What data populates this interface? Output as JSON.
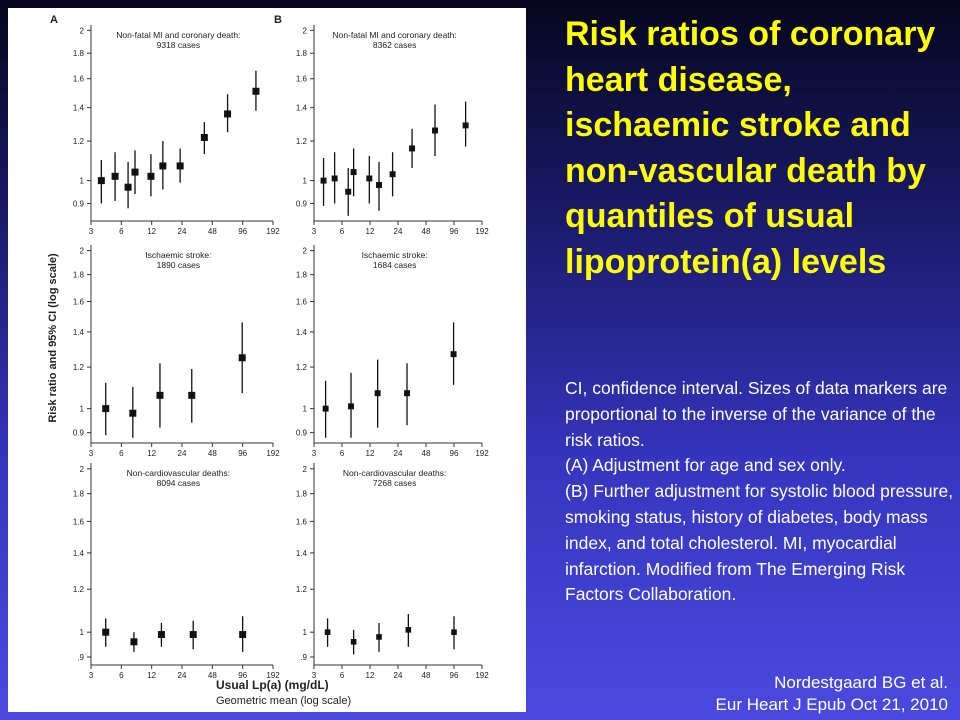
{
  "slide": {
    "title": "Risk ratios of coronary heart disease, ischaemic stroke and non-vascular death by quantiles of usual lipoprotein(a) levels",
    "caption_lines": [
      "CI, confidence interval. Sizes of data markers are proportional to the inverse of the variance of the risk ratios.",
      "(A) Adjustment for age and sex only.",
      "(B) Further adjustment for systolic blood pressure, smoking status, history of diabetes, body mass index, and total cholesterol. MI, myocardial infarction. Modified from The Emerging Risk Factors Collaboration."
    ],
    "citation_line1": "Nordestgaard BG et al.",
    "citation_line2": "Eur Heart J  Epub Oct 21, 2010",
    "title_color": "#ffff00",
    "text_color": "#ffffff"
  },
  "figure": {
    "ylabel": "Risk ratio and 95% CI (log scale)",
    "xlabel_bold": "Usual  Lp(a) (mg/dL)",
    "xlabel_sub": "Geometric mean (log scale)",
    "col_labels": [
      "A",
      "B"
    ]
  },
  "chart_data": [
    {
      "type": "scatter",
      "panel": "A",
      "row": 1,
      "title_line1": "Non-fatal MI and coronary death:",
      "title_line2": "9318 cases",
      "x_scale": "log",
      "y_scale": "log",
      "xlim": [
        3,
        192
      ],
      "x_ticks": [
        3,
        6,
        12,
        24,
        48,
        96,
        192
      ],
      "y_ticks": [
        0.9,
        1,
        1.2,
        1.4,
        1.6,
        1.8,
        2
      ],
      "y_tick_labels": [
        "0.9",
        "1",
        "1.2",
        "1.4",
        "1.6",
        "1.8",
        "2"
      ],
      "ylim": [
        0.83,
        2.05
      ],
      "points": [
        {
          "x": 3.8,
          "y": 1.0,
          "lo": 0.9,
          "hi": 1.1,
          "size": 1.0
        },
        {
          "x": 5.2,
          "y": 1.02,
          "lo": 0.91,
          "hi": 1.14,
          "size": 1.0
        },
        {
          "x": 7.0,
          "y": 0.97,
          "lo": 0.88,
          "hi": 1.09,
          "size": 1.0
        },
        {
          "x": 8.2,
          "y": 1.04,
          "lo": 0.94,
          "hi": 1.15,
          "size": 1.0
        },
        {
          "x": 11.8,
          "y": 1.02,
          "lo": 0.93,
          "hi": 1.13,
          "size": 1.0
        },
        {
          "x": 15.5,
          "y": 1.07,
          "lo": 0.96,
          "hi": 1.2,
          "size": 1.0
        },
        {
          "x": 23,
          "y": 1.07,
          "lo": 0.99,
          "hi": 1.16,
          "size": 1.0
        },
        {
          "x": 40,
          "y": 1.22,
          "lo": 1.13,
          "hi": 1.31,
          "size": 1.0
        },
        {
          "x": 68,
          "y": 1.36,
          "lo": 1.25,
          "hi": 1.49,
          "size": 1.0
        },
        {
          "x": 130,
          "y": 1.51,
          "lo": 1.38,
          "hi": 1.66,
          "size": 1.0
        }
      ]
    },
    {
      "type": "scatter",
      "panel": "B",
      "row": 1,
      "title_line1": "Non-fatal MI and coronary death:",
      "title_line2": "8362 cases",
      "x_scale": "log",
      "y_scale": "log",
      "xlim": [
        3,
        192
      ],
      "x_ticks": [
        3,
        6,
        12,
        24,
        48,
        96,
        192
      ],
      "y_ticks": [
        0.9,
        1,
        1.2,
        1.4,
        1.6,
        1.8,
        2
      ],
      "y_tick_labels": [
        "0.9",
        "1",
        "1.2",
        "1.4",
        "1.6",
        "1.8",
        "2"
      ],
      "ylim": [
        0.83,
        2.05
      ],
      "points": [
        {
          "x": 3.8,
          "y": 1.0,
          "lo": 0.89,
          "hi": 1.11,
          "size": 0.85
        },
        {
          "x": 5.0,
          "y": 1.01,
          "lo": 0.9,
          "hi": 1.14,
          "size": 0.85
        },
        {
          "x": 7.0,
          "y": 0.95,
          "lo": 0.85,
          "hi": 1.06,
          "size": 0.85
        },
        {
          "x": 8.0,
          "y": 1.04,
          "lo": 0.93,
          "hi": 1.16,
          "size": 0.85
        },
        {
          "x": 11.8,
          "y": 1.01,
          "lo": 0.9,
          "hi": 1.12,
          "size": 0.85
        },
        {
          "x": 15.0,
          "y": 0.98,
          "lo": 0.87,
          "hi": 1.09,
          "size": 0.85
        },
        {
          "x": 21,
          "y": 1.03,
          "lo": 0.93,
          "hi": 1.14,
          "size": 0.85
        },
        {
          "x": 34,
          "y": 1.16,
          "lo": 1.06,
          "hi": 1.27,
          "size": 0.85
        },
        {
          "x": 60,
          "y": 1.26,
          "lo": 1.12,
          "hi": 1.42,
          "size": 0.85
        },
        {
          "x": 128,
          "y": 1.29,
          "lo": 1.17,
          "hi": 1.44,
          "size": 0.85
        }
      ]
    },
    {
      "type": "scatter",
      "panel": "A",
      "row": 2,
      "title_line1": "Ischaemic stroke:",
      "title_line2": "1890 cases",
      "x_scale": "log",
      "y_scale": "log",
      "xlim": [
        3,
        192
      ],
      "x_ticks": [
        3,
        6,
        12,
        24,
        48,
        96,
        192
      ],
      "y_ticks": [
        0.9,
        1,
        1.2,
        1.4,
        1.6,
        1.8,
        2
      ],
      "y_tick_labels": [
        "0.9",
        "1",
        "1.2",
        "1.4",
        "1.6",
        "1.8",
        "2"
      ],
      "ylim": [
        0.86,
        2.05
      ],
      "points": [
        {
          "x": 4.2,
          "y": 1.0,
          "lo": 0.89,
          "hi": 1.12,
          "size": 1.0
        },
        {
          "x": 7.8,
          "y": 0.98,
          "lo": 0.88,
          "hi": 1.1,
          "size": 1.0
        },
        {
          "x": 14.5,
          "y": 1.06,
          "lo": 0.92,
          "hi": 1.22,
          "size": 1.0
        },
        {
          "x": 30,
          "y": 1.06,
          "lo": 0.94,
          "hi": 1.19,
          "size": 1.0
        },
        {
          "x": 95,
          "y": 1.25,
          "lo": 1.07,
          "hi": 1.46,
          "size": 1.0
        }
      ]
    },
    {
      "type": "scatter",
      "panel": "B",
      "row": 2,
      "title_line1": "Ischaemic stroke:",
      "title_line2": "1684 cases",
      "x_scale": "log",
      "y_scale": "log",
      "xlim": [
        3,
        192
      ],
      "x_ticks": [
        3,
        6,
        12,
        24,
        48,
        96,
        192
      ],
      "y_ticks": [
        0.9,
        1,
        1.2,
        1.4,
        1.6,
        1.8,
        2
      ],
      "y_tick_labels": [
        "0.9",
        "1",
        "1.2",
        "1.4",
        "1.6",
        "1.8",
        "2"
      ],
      "ylim": [
        0.86,
        2.05
      ],
      "points": [
        {
          "x": 4.0,
          "y": 1.0,
          "lo": 0.88,
          "hi": 1.13,
          "size": 0.85
        },
        {
          "x": 7.5,
          "y": 1.01,
          "lo": 0.88,
          "hi": 1.17,
          "size": 0.85
        },
        {
          "x": 14.5,
          "y": 1.07,
          "lo": 0.92,
          "hi": 1.24,
          "size": 0.85
        },
        {
          "x": 30,
          "y": 1.07,
          "lo": 0.93,
          "hi": 1.22,
          "size": 0.85
        },
        {
          "x": 95,
          "y": 1.27,
          "lo": 1.11,
          "hi": 1.46,
          "size": 0.85
        }
      ]
    },
    {
      "type": "scatter",
      "panel": "A",
      "row": 3,
      "title_line1": "Non-cardiovascular deaths:",
      "title_line2": "8094 cases",
      "x_scale": "log",
      "y_scale": "log",
      "xlim": [
        3,
        192
      ],
      "x_ticks": [
        3,
        6,
        12,
        24,
        48,
        96,
        192
      ],
      "y_ticks": [
        0.9,
        1,
        1.2,
        1.4,
        1.6,
        1.8,
        2
      ],
      "y_tick_labels": [
        ".9",
        "1",
        "1.2",
        "1.4",
        "1.6",
        "1.8",
        "2"
      ],
      "ylim": [
        0.87,
        2.05
      ],
      "points": [
        {
          "x": 4.2,
          "y": 1.0,
          "lo": 0.94,
          "hi": 1.06,
          "size": 1.0
        },
        {
          "x": 8.0,
          "y": 0.96,
          "lo": 0.92,
          "hi": 1.0,
          "size": 1.0
        },
        {
          "x": 15.0,
          "y": 0.99,
          "lo": 0.94,
          "hi": 1.04,
          "size": 1.0
        },
        {
          "x": 31,
          "y": 0.99,
          "lo": 0.93,
          "hi": 1.05,
          "size": 1.0
        },
        {
          "x": 96,
          "y": 0.99,
          "lo": 0.92,
          "hi": 1.07,
          "size": 1.0
        }
      ]
    },
    {
      "type": "scatter",
      "panel": "B",
      "row": 3,
      "title_line1": "Non-cardiovascular deaths:",
      "title_line2": "7268 cases",
      "x_scale": "log",
      "y_scale": "log",
      "xlim": [
        3,
        192
      ],
      "x_ticks": [
        3,
        6,
        12,
        24,
        48,
        96,
        192
      ],
      "y_ticks": [
        0.9,
        1,
        1.2,
        1.4,
        1.6,
        1.8,
        2
      ],
      "y_tick_labels": [
        ".9",
        "1",
        "1.2",
        "1.4",
        "1.6",
        "1.8",
        "2"
      ],
      "ylim": [
        0.87,
        2.05
      ],
      "points": [
        {
          "x": 4.2,
          "y": 1.0,
          "lo": 0.94,
          "hi": 1.06,
          "size": 0.8
        },
        {
          "x": 8.0,
          "y": 0.96,
          "lo": 0.91,
          "hi": 1.01,
          "size": 0.8
        },
        {
          "x": 15.0,
          "y": 0.98,
          "lo": 0.92,
          "hi": 1.04,
          "size": 0.8
        },
        {
          "x": 31,
          "y": 1.01,
          "lo": 0.94,
          "hi": 1.08,
          "size": 0.8
        },
        {
          "x": 96,
          "y": 1.0,
          "lo": 0.93,
          "hi": 1.07,
          "size": 0.8
        }
      ]
    }
  ]
}
